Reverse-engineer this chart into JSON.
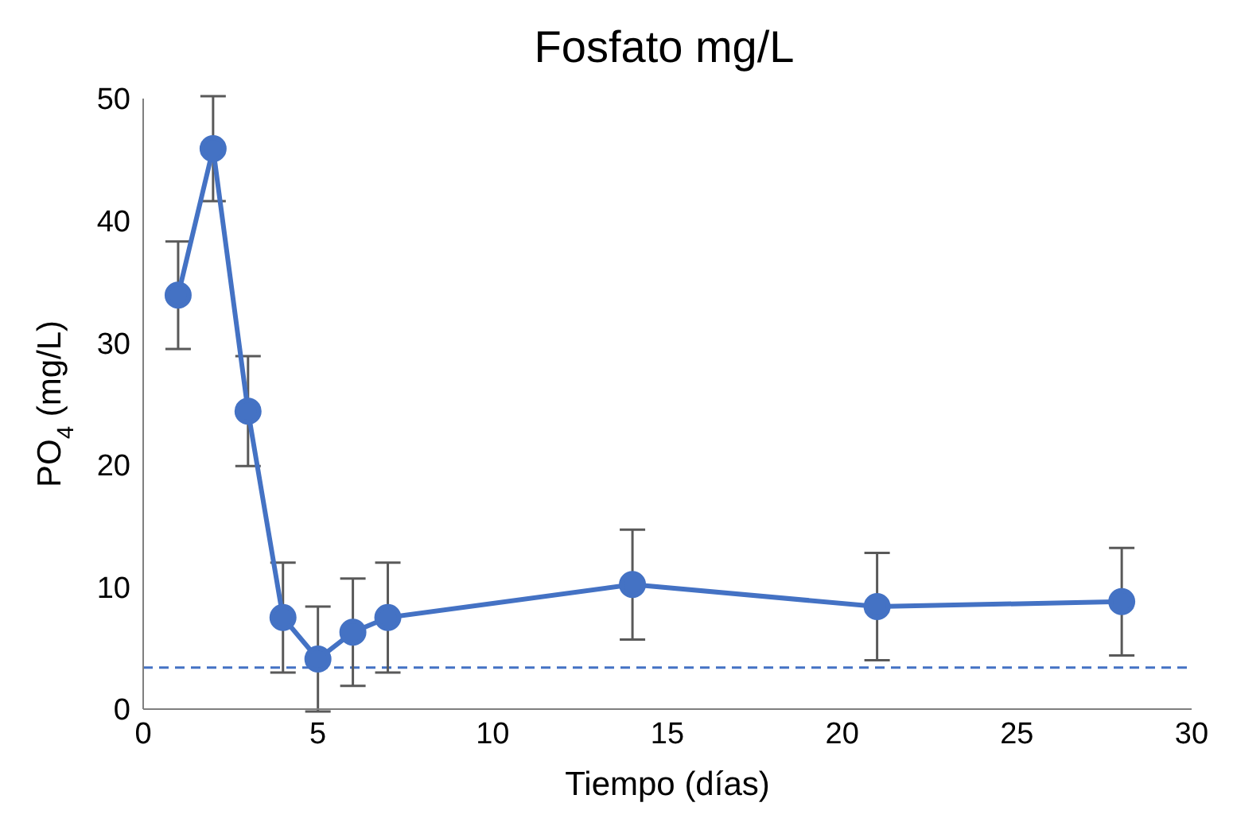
{
  "chart_data": {
    "type": "line",
    "title": "Fosfato mg/L",
    "xlabel": "Tiempo (días)",
    "ylabel": "PO$_{4}$ (mg/L)",
    "x": [
      1,
      2,
      3,
      4,
      5,
      6,
      7,
      14,
      21,
      28
    ],
    "series": [
      {
        "color": "#4472c4",
        "values": [
          33.9,
          45.9,
          24.4,
          7.5,
          4.1,
          6.3,
          7.5,
          10.2,
          8.4,
          8.8
        ],
        "errors": [
          4.4,
          4.3,
          4.5,
          4.5,
          4.3,
          4.4,
          4.5,
          4.5,
          4.4,
          4.4
        ]
      }
    ],
    "xlim": [
      0,
      30
    ],
    "xticks": [
      0,
      5,
      10,
      15,
      20,
      25,
      30
    ],
    "ylim": [
      0,
      50
    ],
    "yticks": [
      0,
      10,
      20,
      30,
      40,
      50
    ],
    "ref_lines": [
      {
        "axis": "y",
        "value": 3.4,
        "color": "#4472c4",
        "line_style": "dashed"
      }
    ],
    "grid": false,
    "legend": false,
    "marker": "circle",
    "line_style": "solid"
  }
}
